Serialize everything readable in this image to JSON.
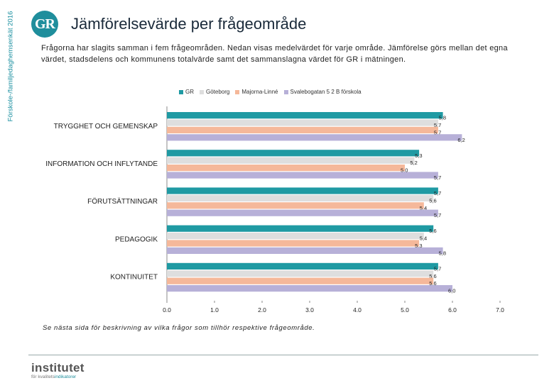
{
  "header": {
    "side_label": "Förskole-/familjedaghemsenkät 2016",
    "logo_text": "GR",
    "title": "Jämförelsevärde per frågeområde",
    "intro": "Frågorna har slagits samman i fem frågeområden. Nedan visas medelvärdet för varje område. Jämförelse görs mellan det egna värdet, stadsdelens och kommunens totalvärde samt det sammanslagna värdet för GR i mätningen."
  },
  "colors": {
    "GR": "#1f9aa3",
    "Goteborg": "#dedede",
    "Majorna": "#f5b89a",
    "Svalebo": "#b7b0d8"
  },
  "legend": {
    "items": [
      "GR",
      "Göteborg",
      "Majorna-Linné",
      "Svalebogatan 5 2 B förskola"
    ]
  },
  "chart_data": {
    "type": "bar",
    "orientation": "horizontal",
    "title": "Jämförelsevärde per frågeområde",
    "categories": [
      "TRYGGHET OCH GEMENSKAP",
      "INFORMATION OCH INFLYTANDE",
      "FÖRUTSÄTTNINGAR",
      "PEDAGOGIK",
      "KONTINUITET"
    ],
    "series": [
      {
        "name": "GR",
        "values": [
          5.8,
          5.3,
          5.7,
          5.6,
          5.7
        ],
        "labels": [
          "5,8",
          "5,3",
          "5,7",
          "5,6",
          "5,7"
        ]
      },
      {
        "name": "Göteborg",
        "values": [
          5.7,
          5.2,
          5.6,
          5.4,
          5.6
        ],
        "labels": [
          "5,7",
          "5,2",
          "5,6",
          "5,4",
          "5,6"
        ]
      },
      {
        "name": "Majorna-Linné",
        "values": [
          5.7,
          5.0,
          5.4,
          5.3,
          5.6
        ],
        "labels": [
          "5,7",
          "5,0",
          "5,4",
          "5,3",
          "5,6"
        ]
      },
      {
        "name": "Svalebogatan 5 2 B förskola",
        "values": [
          6.2,
          5.7,
          5.7,
          5.8,
          6.0
        ],
        "labels": [
          "6,2",
          "5,7",
          "5,7",
          "5,8",
          "6,0"
        ]
      }
    ],
    "xlim": [
      0,
      7
    ],
    "xticks": [
      "0,0",
      "1,0",
      "2,0",
      "3,0",
      "4,0",
      "5,0",
      "6,0",
      "7,0"
    ],
    "xlabel": "",
    "ylabel": "",
    "grid": false,
    "legend_position": "top"
  },
  "footer": {
    "note": "Se nästa sida för beskrivning av vilka frågor som tillhör respektive frågeområde.",
    "brand": "institutet",
    "brand_sub_prefix": "för kvalitets",
    "brand_sub_accent": "indikatorer"
  }
}
